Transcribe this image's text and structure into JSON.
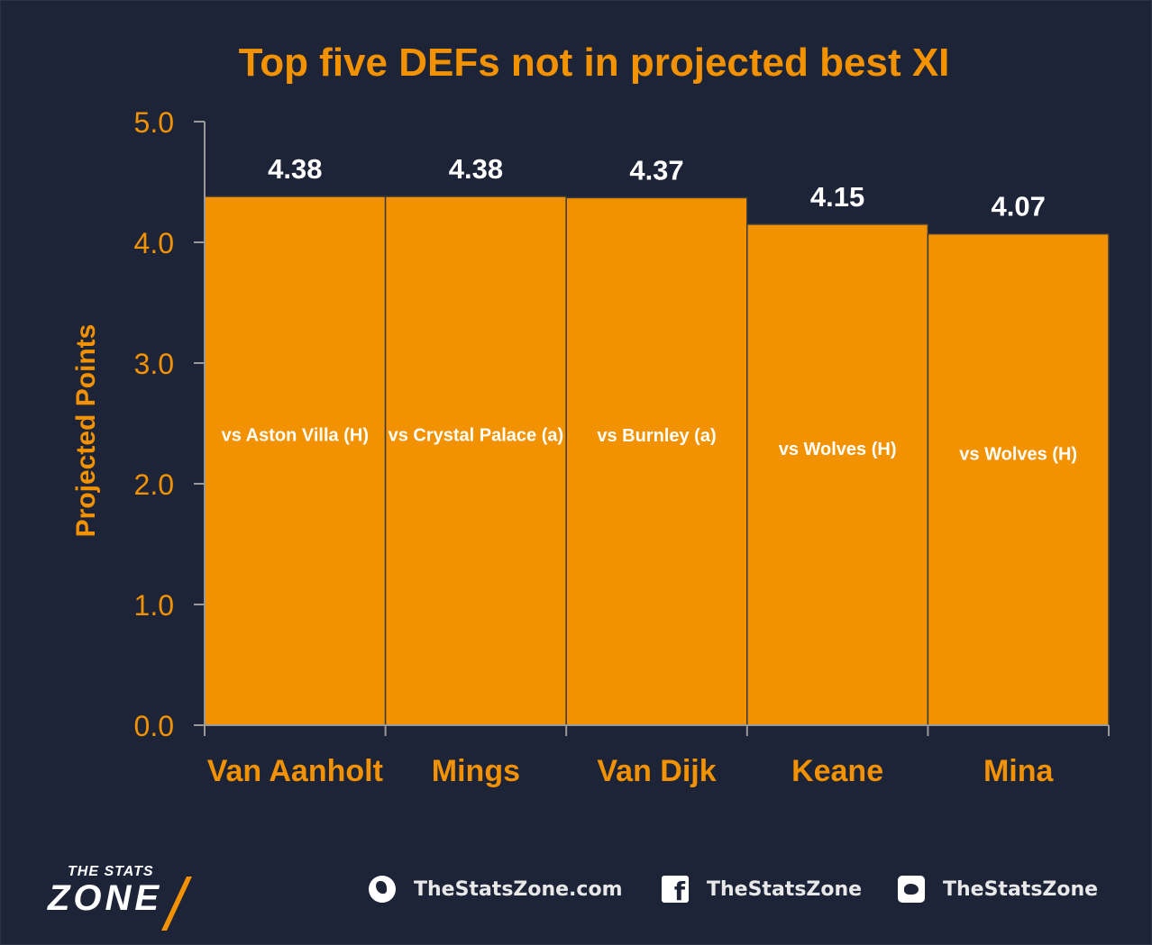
{
  "chart_data": {
    "type": "bar",
    "title": "Top five DEFs not in projected best XI",
    "ylabel": "Projected Points",
    "xlabel": "",
    "categories": [
      "Van Aanholt",
      "Mings",
      "Van Dijk",
      "Keane",
      "Mina"
    ],
    "values": [
      4.38,
      4.38,
      4.37,
      4.15,
      4.07
    ],
    "value_labels": [
      "4.38",
      "4.38",
      "4.37",
      "4.15",
      "4.07"
    ],
    "bar_labels": [
      "vs Aston Villa (H)",
      "vs Crystal Palace (a)",
      "vs Burnley (a)",
      "vs Wolves (H)",
      "vs Wolves (H)"
    ],
    "yticks": [
      "0.0",
      "1.0",
      "2.0",
      "3.0",
      "4.0",
      "5.0"
    ],
    "ylim": [
      0,
      5
    ],
    "grid": false,
    "colors": {
      "bar": "#f39200",
      "accent": "#f39200",
      "background": "#1d2438",
      "value_label": "#ffffff",
      "axis": "#9a9a9a"
    }
  },
  "footer": {
    "logo_top": "THE STATS",
    "logo_main": "ZONE",
    "website": "TheStatsZone.com",
    "facebook": "TheStatsZone",
    "twitter": "TheStatsZone",
    "icons": [
      "globe-icon",
      "facebook-icon",
      "twitter-icon"
    ]
  }
}
